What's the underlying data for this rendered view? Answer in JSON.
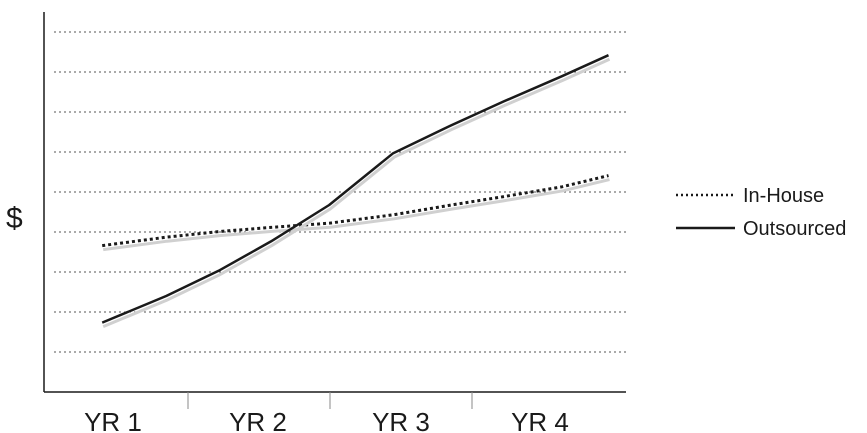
{
  "chart_data": {
    "type": "line",
    "title": "",
    "xlabel": "",
    "ylabel": "$",
    "categories": [
      "YR 1",
      "YR 2",
      "YR 3",
      "YR 4"
    ],
    "x": [
      1.0,
      1.55,
      2.0,
      2.45,
      2.95,
      3.5,
      4.0,
      4.45,
      4.95,
      5.35
    ],
    "ylim": [
      0,
      10
    ],
    "grid": true,
    "legend_position": "right",
    "series": [
      {
        "name": "In-House",
        "style": "dotted",
        "color": "#1a1a1a",
        "values": [
          3.8,
          4.1,
          4.3,
          4.45,
          4.6,
          4.9,
          5.25,
          5.55,
          5.9,
          6.3
        ]
      },
      {
        "name": "Outsourced",
        "style": "solid",
        "color": "#1a1a1a",
        "values": [
          1.05,
          2.0,
          2.9,
          3.95,
          5.25,
          7.1,
          8.1,
          8.95,
          9.85,
          10.6
        ]
      }
    ]
  }
}
